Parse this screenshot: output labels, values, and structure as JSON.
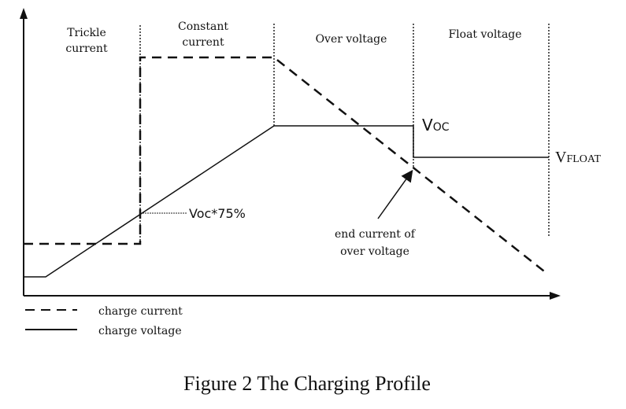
{
  "regions": {
    "trickle_line1": "Trickle",
    "trickle_line2": "current",
    "constant_line1": "Constant",
    "constant_line2": "current",
    "over_voltage": "Over voltage",
    "float_voltage": "Float voltage"
  },
  "labels": {
    "voc_main": "V",
    "voc_sub": "OC",
    "vfloat_main": "V",
    "vfloat_sub": "FLOAT",
    "voc75": "Voc*75%",
    "end_current_line1": "end current of",
    "end_current_line2": "over voltage"
  },
  "legend": {
    "charge_current": "charge current",
    "charge_voltage": "charge voltage"
  },
  "caption": "Figure 2 The Charging Profile"
}
